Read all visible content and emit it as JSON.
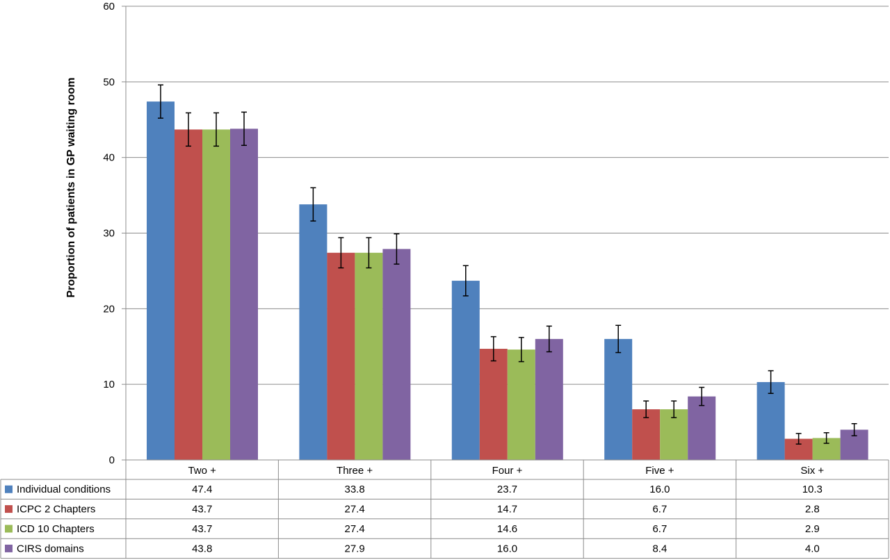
{
  "chart_data": {
    "type": "bar",
    "title": "",
    "xlabel": "",
    "ylabel": "Proportion of patients in GP waiting room",
    "ylim": [
      0,
      60
    ],
    "yticks": [
      0,
      10,
      20,
      30,
      40,
      50,
      60
    ],
    "grid": true,
    "legend": "data-table-below",
    "categories": [
      "Two +",
      "Three +",
      "Four +",
      "Five +",
      "Six +"
    ],
    "error_bar_halfwidth": [
      [
        2.2,
        2.2,
        2.0,
        1.8,
        1.5
      ],
      [
        2.2,
        2.0,
        1.6,
        1.1,
        0.7
      ],
      [
        2.2,
        2.0,
        1.6,
        1.1,
        0.7
      ],
      [
        2.2,
        2.0,
        1.7,
        1.2,
        0.8
      ]
    ],
    "series": [
      {
        "name": "Individual conditions",
        "color": "#4f81bd",
        "values": [
          47.4,
          33.8,
          23.7,
          16.0,
          10.3
        ],
        "labels": [
          "47.4",
          "33.8",
          "23.7",
          "16.0",
          "10.3"
        ]
      },
      {
        "name": "ICPC 2 Chapters",
        "color": "#c0504d",
        "values": [
          43.7,
          27.4,
          14.7,
          6.7,
          2.8
        ],
        "labels": [
          "43.7",
          "27.4",
          "14.7",
          "6.7",
          "2.8"
        ]
      },
      {
        "name": "ICD 10 Chapters",
        "color": "#9bbb59",
        "values": [
          43.7,
          27.4,
          14.6,
          6.7,
          2.9
        ],
        "labels": [
          "43.7",
          "27.4",
          "14.6",
          "6.7",
          "2.9"
        ]
      },
      {
        "name": "CIRS domains",
        "color": "#8064a2",
        "values": [
          43.8,
          27.9,
          16.0,
          8.4,
          4.0
        ],
        "labels": [
          "43.8",
          "27.9",
          "16.0",
          "8.4",
          "4.0"
        ]
      }
    ]
  }
}
